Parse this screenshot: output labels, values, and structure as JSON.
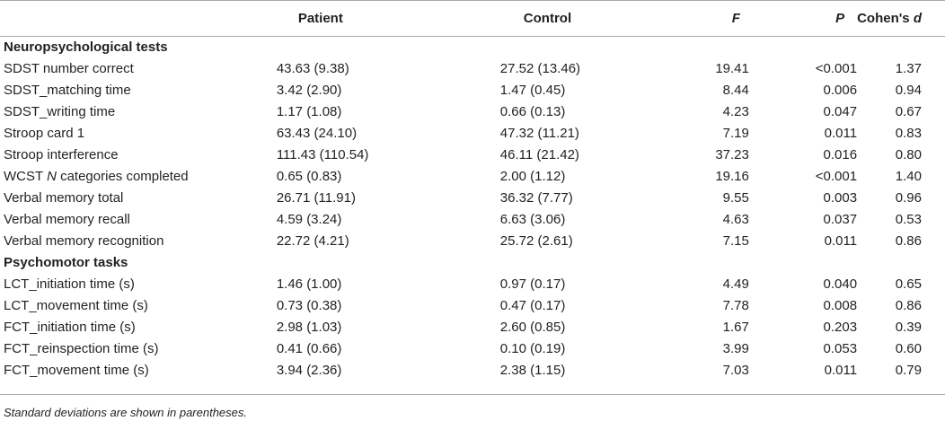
{
  "header": {
    "col0": "",
    "patient": "Patient",
    "control": "Control",
    "f": "F",
    "p": "P",
    "cohens_prefix": "Cohen's ",
    "cohens_d": "d"
  },
  "sections": [
    {
      "title": "Neuropsychological tests",
      "rows": [
        {
          "label_pre": "SDST number correct",
          "label_it": "",
          "label_post": "",
          "patient": "43.63 (9.38)",
          "control": "27.52 (13.46)",
          "f": "19.41",
          "p": "<0.001",
          "d": "1.37"
        },
        {
          "label_pre": "SDST_matching time",
          "label_it": "",
          "label_post": "",
          "patient": "3.42 (2.90)",
          "control": "1.47 (0.45)",
          "f": "8.44",
          "p": "0.006",
          "d": "0.94"
        },
        {
          "label_pre": "SDST_writing time",
          "label_it": "",
          "label_post": "",
          "patient": "1.17 (1.08)",
          "control": "0.66 (0.13)",
          "f": "4.23",
          "p": "0.047",
          "d": "0.67"
        },
        {
          "label_pre": "Stroop card 1",
          "label_it": "",
          "label_post": "",
          "patient": "63.43 (24.10)",
          "control": "47.32 (11.21)",
          "f": "7.19",
          "p": "0.011",
          "d": "0.83"
        },
        {
          "label_pre": "Stroop interference",
          "label_it": "",
          "label_post": "",
          "patient": "111.43 (110.54)",
          "control": "46.11 (21.42)",
          "f": "37.23",
          "p": "0.016",
          "d": "0.80"
        },
        {
          "label_pre": "WCST ",
          "label_it": "N",
          "label_post": " categories completed",
          "patient": "0.65 (0.83)",
          "control": "2.00 (1.12)",
          "f": "19.16",
          "p": "<0.001",
          "d": "1.40"
        },
        {
          "label_pre": "Verbal memory total",
          "label_it": "",
          "label_post": "",
          "patient": "26.71 (11.91)",
          "control": "36.32 (7.77)",
          "f": "9.55",
          "p": "0.003",
          "d": "0.96"
        },
        {
          "label_pre": "Verbal memory recall",
          "label_it": "",
          "label_post": "",
          "patient": "4.59 (3.24)",
          "control": "6.63 (3.06)",
          "f": "4.63",
          "p": "0.037",
          "d": "0.53"
        },
        {
          "label_pre": "Verbal memory recognition",
          "label_it": "",
          "label_post": "",
          "patient": "22.72 (4.21)",
          "control": "25.72 (2.61)",
          "f": "7.15",
          "p": "0.011",
          "d": "0.86"
        }
      ]
    },
    {
      "title": "Psychomotor tasks",
      "rows": [
        {
          "label_pre": "LCT_initiation time (s)",
          "label_it": "",
          "label_post": "",
          "patient": "1.46 (1.00)",
          "control": "0.97 (0.17)",
          "f": "4.49",
          "p": "0.040",
          "d": "0.65"
        },
        {
          "label_pre": "LCT_movement time (s)",
          "label_it": "",
          "label_post": "",
          "patient": "0.73 (0.38)",
          "control": "0.47 (0.17)",
          "f": "7.78",
          "p": "0.008",
          "d": "0.86"
        },
        {
          "label_pre": "FCT_initiation time (s)",
          "label_it": "",
          "label_post": "",
          "patient": "2.98 (1.03)",
          "control": "2.60 (0.85)",
          "f": "1.67",
          "p": "0.203",
          "d": "0.39"
        },
        {
          "label_pre": "FCT_reinspection time (s)",
          "label_it": "",
          "label_post": "",
          "patient": "0.41 (0.66)",
          "control": "0.10 (0.19)",
          "f": "3.99",
          "p": "0.053",
          "d": "0.60"
        },
        {
          "label_pre": "FCT_movement time (s)",
          "label_it": "",
          "label_post": "",
          "patient": "3.94 (2.36)",
          "control": "2.38 (1.15)",
          "f": "7.03",
          "p": "0.011",
          "d": "0.79"
        }
      ]
    }
  ],
  "footnote": "Standard deviations are shown in parentheses."
}
